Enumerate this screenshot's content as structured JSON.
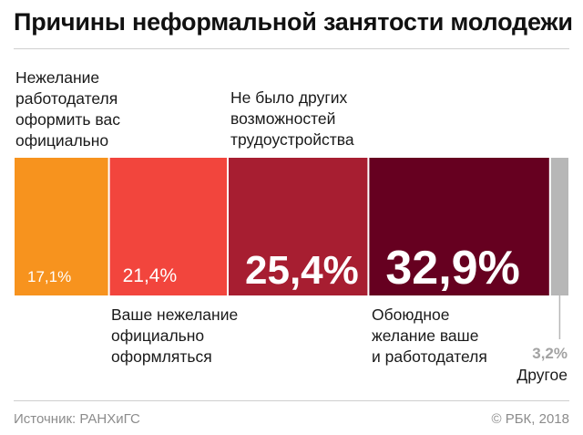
{
  "title": "Причины неформальной занятости молодежи",
  "source": "Источник: РАНХиГС",
  "credit": "© РБК, 2018",
  "chart_data": {
    "type": "bar",
    "stacked": true,
    "orientation": "horizontal",
    "unit": "%",
    "total": 100,
    "categories": [
      "Нежелание работодателя оформить вас официально",
      "Ваше нежелание официально оформляться",
      "Не было других возможностей трудоустройства",
      "Обоюдное желание ваше и работодателя",
      "Другое"
    ],
    "label_lines": [
      "Нежелание\nработодателя\nоформить вас\nофициально",
      "Ваше нежелание\nофициально\nоформляться",
      "Не было других\nвозможностей\nтрудоустройства",
      "Обоюдное\nжелание ваше\nи работодателя",
      "Другое"
    ],
    "values": [
      17.1,
      21.4,
      25.4,
      32.9,
      3.2
    ],
    "value_labels": [
      "17,1%",
      "21,4%",
      "25,4%",
      "32,9%",
      "3,2%"
    ],
    "colors": [
      "#f7931e",
      "#f2453d",
      "#a71e31",
      "#660020",
      "#b7b7b7"
    ],
    "legend": "none"
  }
}
